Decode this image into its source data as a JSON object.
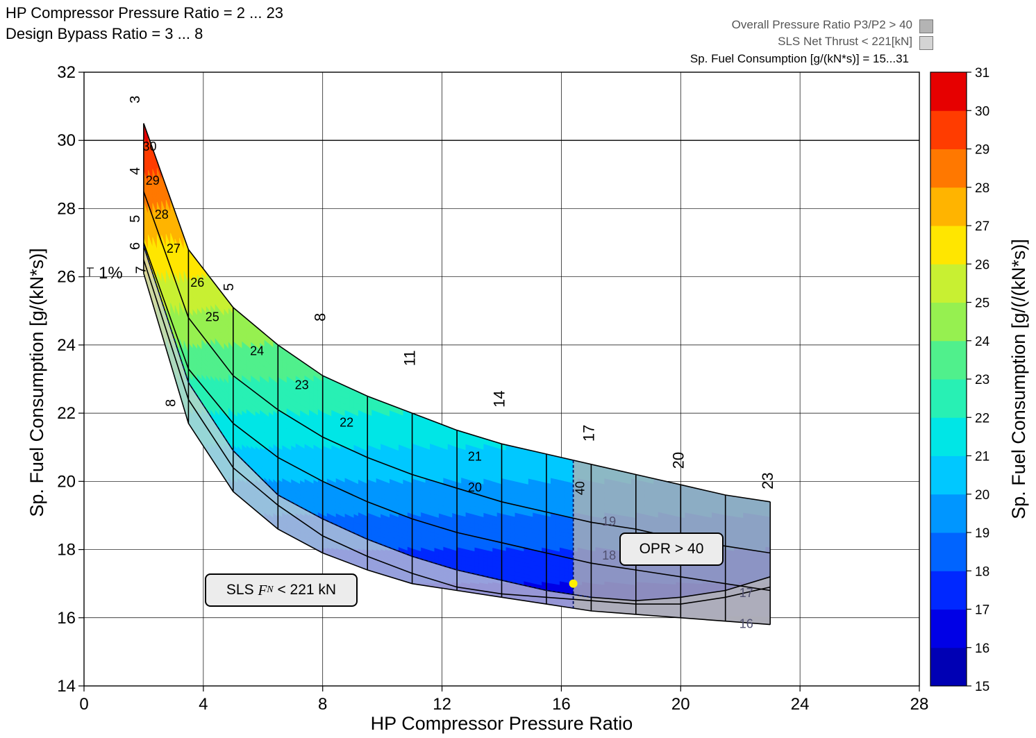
{
  "header": {
    "line1": "HP Compressor Pressure Ratio = 2 ... 23",
    "line2": "Design Bypass Ratio = 3 ... 8"
  },
  "legend": {
    "opr": "Overall Pressure Ratio P3/P2 > 40",
    "thrust": "SLS Net Thrust < 221[kN]",
    "sfc": "Sp. Fuel Consumption [g/(kN*s)] = 15...31",
    "opr_color": "#b4b4b4",
    "thrust_color": "#d4d4d4"
  },
  "annotations": {
    "opr_box": "OPR > 40",
    "sls_box_prefix": "SLS ",
    "sls_box_symbol": "F",
    "sls_box_sub": "N",
    "sls_box_suffix": " < 221 kN",
    "tolerance": "1%",
    "opr_line_label": "40"
  },
  "chart_data": {
    "type": "carpet",
    "xlabel": "HP Compressor Pressure Ratio",
    "ylabel": "Sp. Fuel Consumption [g/(kN*s)]",
    "xlim": [
      0,
      28
    ],
    "ylim": [
      14,
      32
    ],
    "xticks": [
      0,
      4,
      8,
      12,
      16,
      20,
      24,
      28
    ],
    "yticks": [
      14,
      16,
      18,
      20,
      22,
      24,
      26,
      28,
      30,
      32
    ],
    "grid": true,
    "hp_pressure_ratio": [
      2,
      3.5,
      5,
      6.5,
      8,
      9.5,
      11,
      12.5,
      14,
      15.5,
      17,
      18.5,
      20,
      21.5,
      23
    ],
    "bypass_ratio": [
      3,
      4,
      5,
      6,
      7,
      8
    ],
    "sfc": [
      [
        30.5,
        26.8,
        25.1,
        24.0,
        23.1,
        22.5,
        22.0,
        21.5,
        21.1,
        20.8,
        20.5,
        20.2,
        19.9,
        19.6,
        19.4
      ],
      [
        28.5,
        24.8,
        23.1,
        22.1,
        21.3,
        20.7,
        20.2,
        19.8,
        19.4,
        19.1,
        18.8,
        18.6,
        18.3,
        18.1,
        17.9
      ],
      [
        27.0,
        23.3,
        21.7,
        20.7,
        20.0,
        19.4,
        18.9,
        18.5,
        18.2,
        17.9,
        17.6,
        17.4,
        17.2,
        17.0,
        16.8
      ],
      [
        26.9,
        22.9,
        20.9,
        19.6,
        18.9,
        18.3,
        17.8,
        17.4,
        17.1,
        16.8,
        16.6,
        16.5,
        16.6,
        16.8,
        17.2
      ],
      [
        26.5,
        22.4,
        20.4,
        19.3,
        18.4,
        17.8,
        17.3,
        16.9,
        16.7,
        16.6,
        16.5,
        16.4,
        16.4,
        16.6,
        16.9
      ],
      [
        26.1,
        21.7,
        19.7,
        18.6,
        17.9,
        17.4,
        17.0,
        16.8,
        16.6,
        16.4,
        16.2,
        16.1,
        16.0,
        15.9,
        15.8
      ]
    ],
    "hp_pressure_ratio_labels": [
      "8",
      "11",
      "14",
      "17",
      "20",
      "23"
    ],
    "bypass_ratio_labels": [
      "3",
      "4",
      "5",
      "6",
      "7",
      "8"
    ],
    "sfc_contour_labels": [
      "30",
      "29",
      "28",
      "27",
      "26",
      "25",
      "24",
      "23",
      "22",
      "21",
      "20",
      "19",
      "18",
      "17",
      "16"
    ],
    "opr_limit_hp_pressure_ratio": 16.4,
    "design_point": {
      "hp_pressure_ratio": 16.4,
      "sfc": 17.0
    },
    "colorbar": {
      "label": "Sp. Fuel Consumption [g/(/(kN*s)]",
      "min": 15,
      "max": 31,
      "ticks": [
        "15",
        "16",
        "17",
        "18",
        "19",
        "20",
        "21",
        "22",
        "23",
        "24",
        "25",
        "26",
        "27",
        "28",
        "29",
        "30",
        "31"
      ],
      "colors": [
        "#000080",
        "#0000b4",
        "#0000e6",
        "#0028ff",
        "#0064ff",
        "#0096ff",
        "#00c8ff",
        "#00e6e6",
        "#28f0b4",
        "#50f08c",
        "#96f050",
        "#c8f032",
        "#ffe600",
        "#ffb400",
        "#ff7800",
        "#ff3c00",
        "#e60000",
        "#8c0000"
      ]
    }
  }
}
